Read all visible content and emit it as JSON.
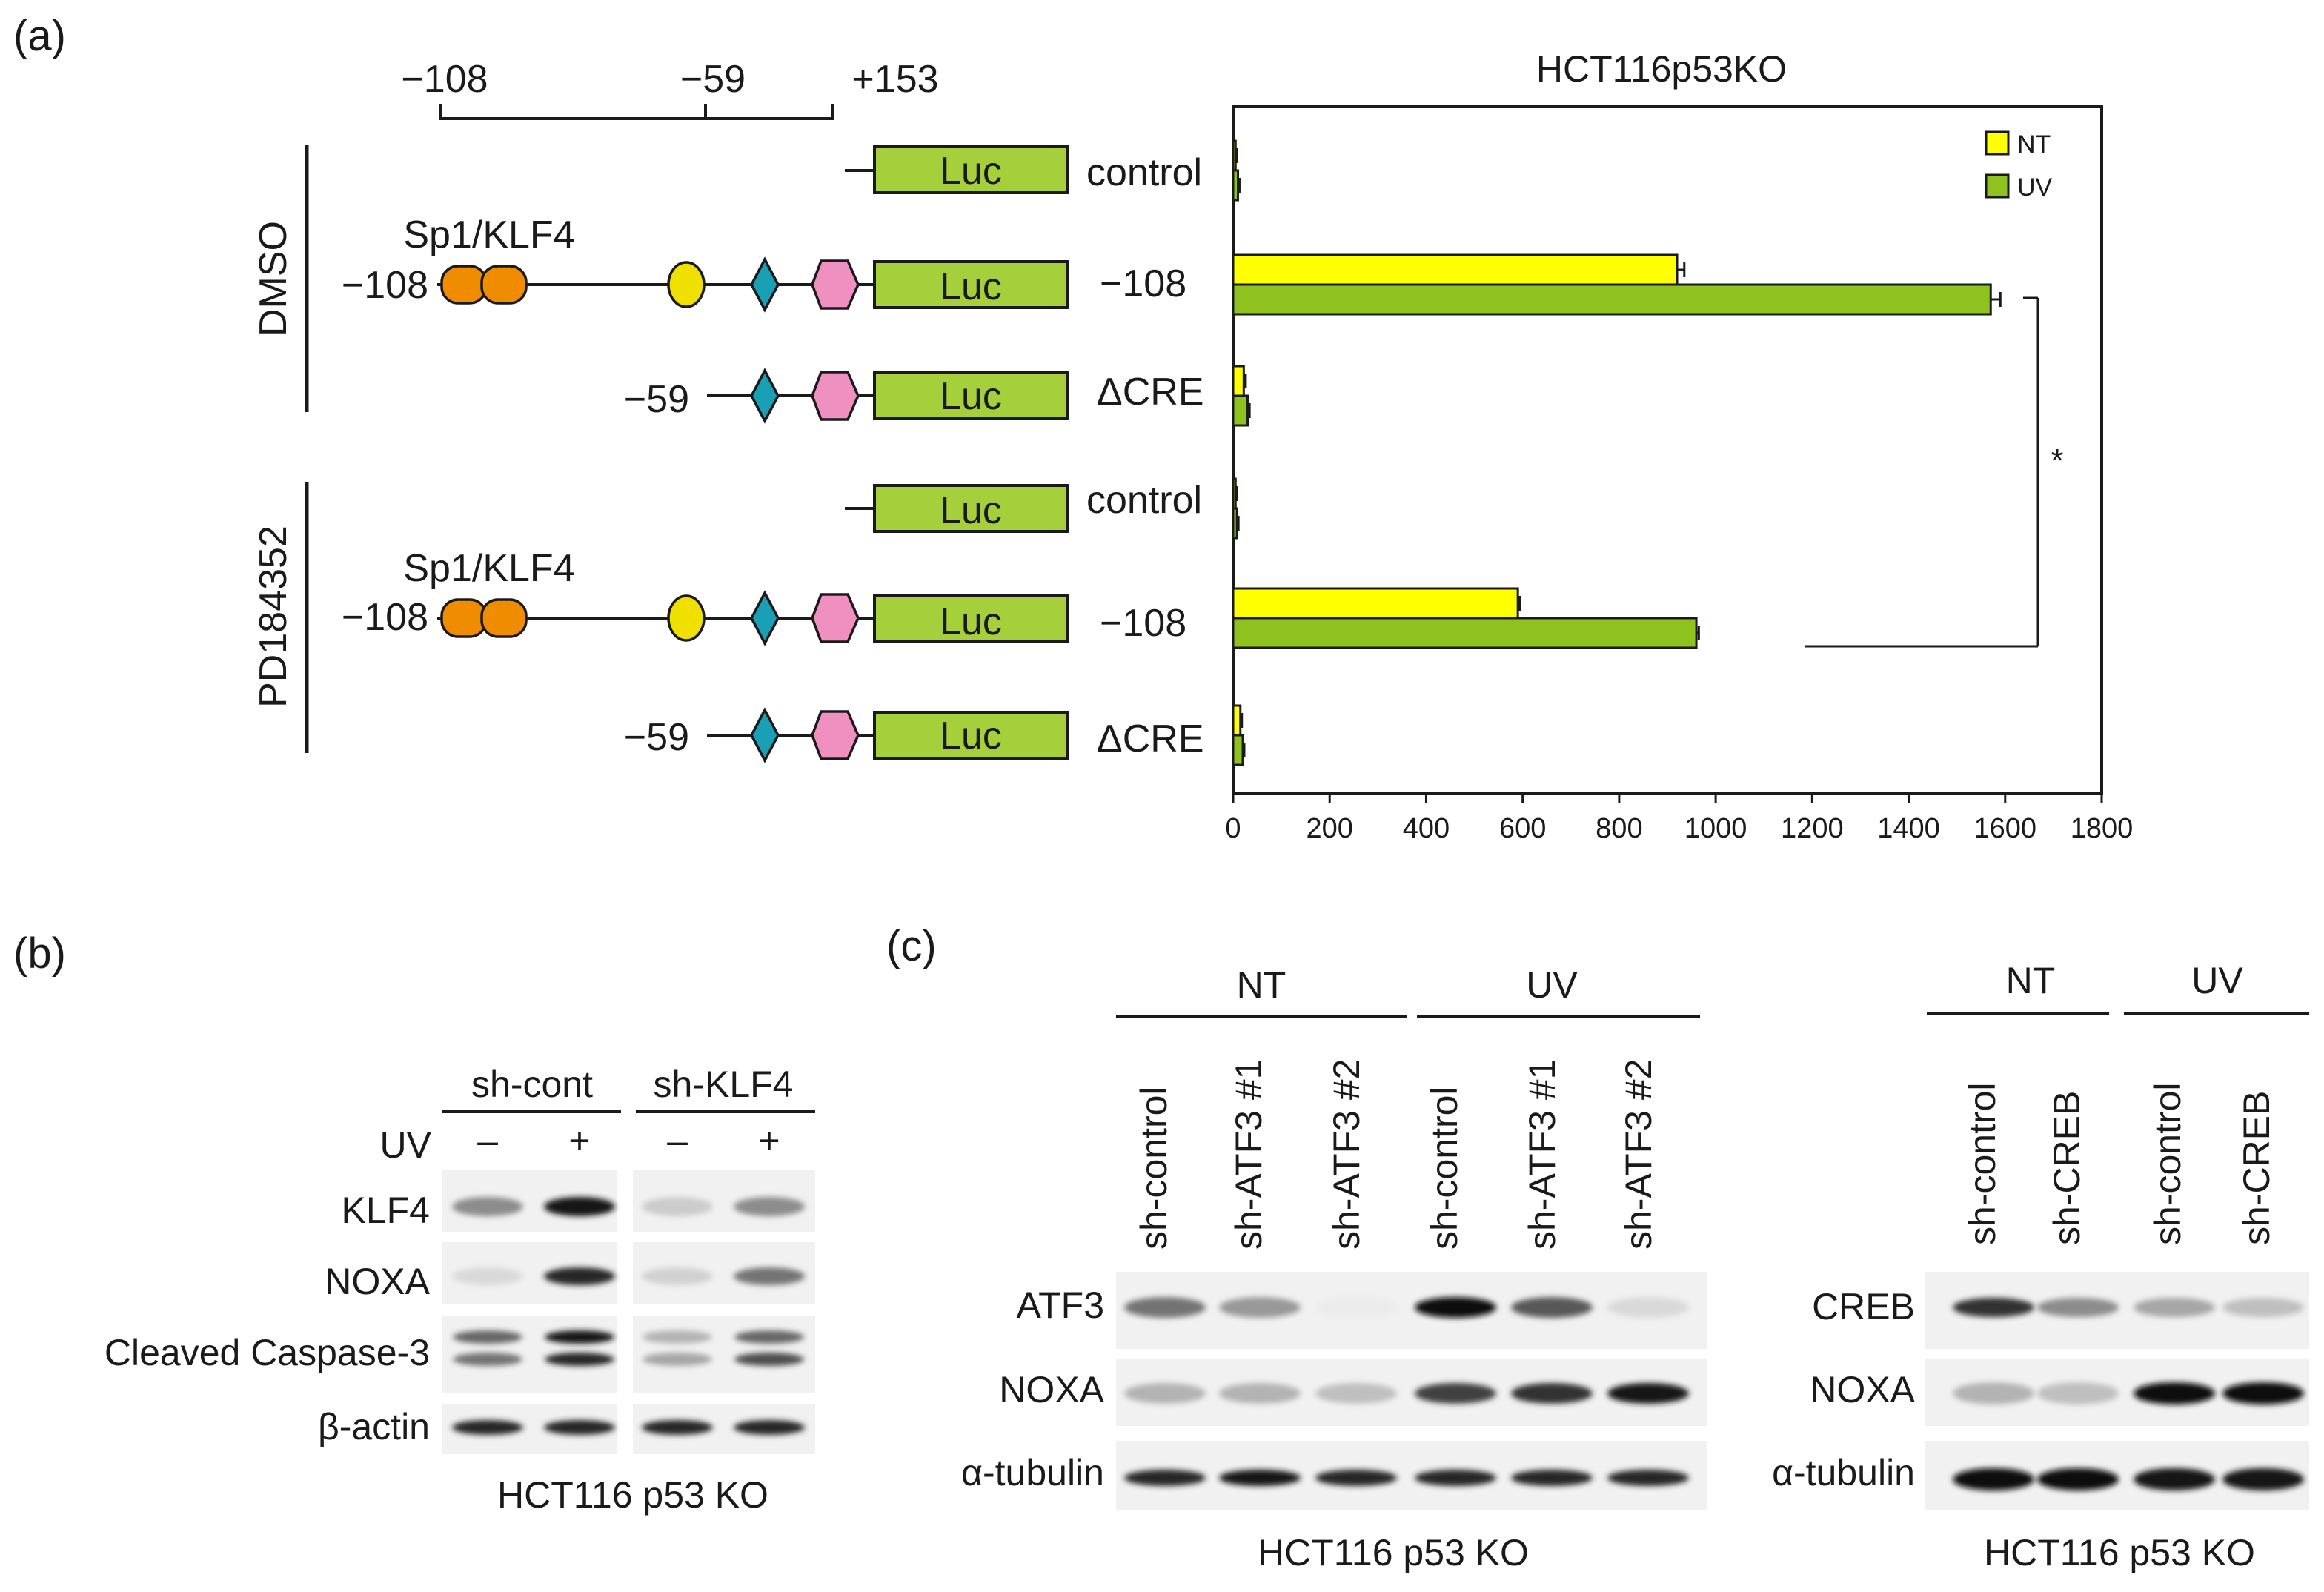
{
  "panel_a": {
    "letter": "(a)",
    "scale_labels": [
      "−108",
      "−59",
      "+153"
    ],
    "group_labels": [
      "DMSO",
      "PD184352"
    ],
    "site_label": "Sp1/KLF4",
    "site_label_2": "Sp1/KLF4",
    "construct_numbers": {
      "p108_1": "−108",
      "p59_1": "−59",
      "p108_2": "−108",
      "p59_2": "−59"
    },
    "reporter_label": "Luc",
    "row_labels": [
      "control",
      "−108",
      "ΔCRE",
      "control",
      "−108",
      "ΔCRE"
    ],
    "colors": {
      "NT": "#ffff00",
      "UV": "#8dc21f",
      "Sp1_KLF4": "#f08c00",
      "circle": "#f0e000",
      "diamond": "#1aa0b4",
      "hexagon": "#f090c0",
      "luc": "#a6cf3c"
    }
  },
  "chart_data": {
    "type": "bar",
    "orientation": "horizontal",
    "title": "HCT116p53KO",
    "categories": [
      "control",
      "−108",
      "ΔCRE",
      "control",
      "−108",
      "ΔCRE"
    ],
    "series": [
      {
        "name": "NT",
        "values": [
          5,
          920,
          22,
          5,
          590,
          15
        ],
        "errors": [
          3,
          15,
          4,
          3,
          4,
          3
        ]
      },
      {
        "name": "UV",
        "values": [
          10,
          1570,
          30,
          8,
          960,
          20
        ],
        "errors": [
          3,
          20,
          4,
          3,
          5,
          3
        ]
      }
    ],
    "xlim": [
      0,
      1800
    ],
    "xticks": [
      "0",
      "200",
      "400",
      "600",
      "800",
      "1000",
      "1200",
      "1400",
      "1600",
      "1800"
    ],
    "legend": "top-right",
    "significance": "*"
  },
  "panel_b": {
    "letter": "(b)",
    "groups": [
      "sh-cont",
      "sh-KLF4"
    ],
    "uv_label": "UV",
    "uv_states": [
      "–",
      "+",
      "–",
      "+"
    ],
    "rows": [
      "KLF4",
      "NOXA",
      "Cleaved Caspase-3",
      "β-actin"
    ],
    "footer": "HCT116 p53 KO"
  },
  "panel_c": {
    "letter": "(c)",
    "left": {
      "groups": [
        "NT",
        "UV"
      ],
      "lanes": [
        "sh-control",
        "sh-ATF3 #1",
        "sh-ATF3 #2",
        "sh-control",
        "sh-ATF3 #1",
        "sh-ATF3 #2"
      ],
      "rows": [
        "ATF3",
        "NOXA",
        "α-tubulin"
      ],
      "footer": "HCT116 p53 KO"
    },
    "right": {
      "groups": [
        "NT",
        "UV"
      ],
      "lanes": [
        "sh-control",
        "sh-CREB",
        "sh-control",
        "sh-CREB"
      ],
      "rows": [
        "CREB",
        "NOXA",
        "α-tubulin"
      ],
      "footer": "HCT116 p53 KO"
    }
  }
}
